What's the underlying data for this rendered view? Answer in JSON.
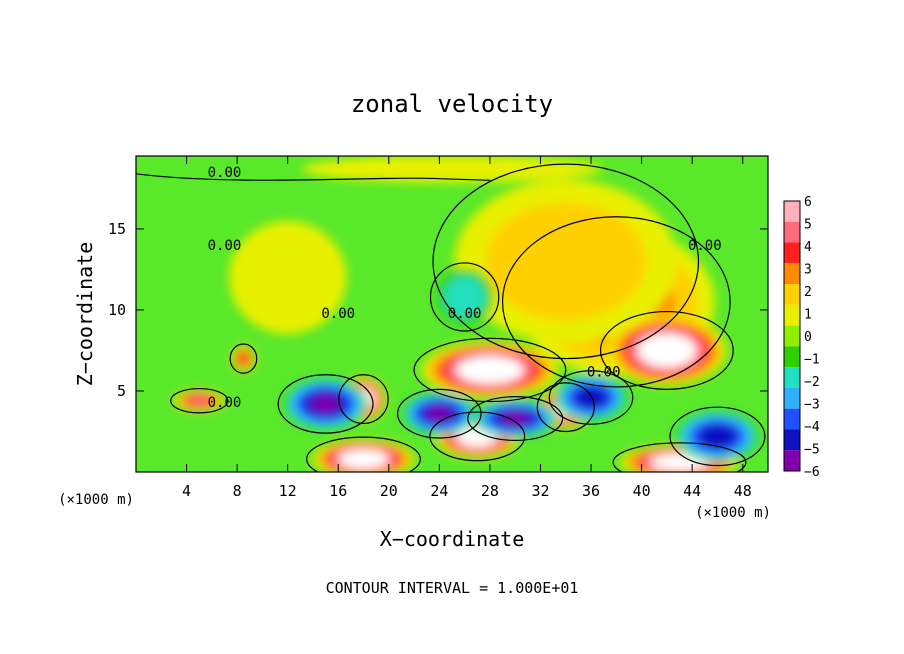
{
  "chart_data": {
    "type": "heatmap",
    "title": "zonal velocity",
    "xlabel": "X−coordinate",
    "ylabel": "Z−coordinate",
    "x_unit": "(×1000 m)",
    "y_unit": "(×1000 m)",
    "xlim": [
      0,
      50
    ],
    "ylim": [
      0,
      19.5
    ],
    "x_ticks": [
      4,
      8,
      12,
      16,
      20,
      24,
      28,
      32,
      36,
      40,
      44,
      48
    ],
    "y_ticks": [
      5,
      10,
      15
    ],
    "footer": "CONTOUR INTERVAL = 1.000E+01",
    "contour_label": "0.00",
    "contour_label_points": [
      [
        7,
        18.2
      ],
      [
        7,
        13.7
      ],
      [
        16,
        9.5
      ],
      [
        26,
        9.5
      ],
      [
        37,
        5.9
      ],
      [
        45,
        13.7
      ],
      [
        7,
        4.0
      ]
    ],
    "colorbar": {
      "ticks": [
        "6",
        "5",
        "4",
        "3",
        "2",
        "1",
        "0",
        "−1",
        "−2",
        "−3",
        "−4",
        "−5",
        "−6"
      ],
      "colors": [
        "#ffb0b8",
        "#ff6a7a",
        "#ff2020",
        "#ff8c00",
        "#ffd000",
        "#e8f000",
        "#90f000",
        "#30d000",
        "#20e0c0",
        "#30b0ff",
        "#2050ff",
        "#1010c0",
        "#8000b0"
      ]
    },
    "features": [
      {
        "x": 38,
        "z": 10.5,
        "value": 3.0,
        "sx": 6,
        "sz": 3.5
      },
      {
        "x": 34,
        "z": 13,
        "value": 2.0,
        "sx": 7,
        "sz": 4
      },
      {
        "x": 42,
        "z": 7.5,
        "value": 6.5,
        "sx": 3.5,
        "sz": 1.6
      },
      {
        "x": 28,
        "z": 6.3,
        "value": 6.5,
        "sx": 4,
        "sz": 1.3
      },
      {
        "x": 18,
        "z": 4.5,
        "value": 6.5,
        "sx": 1.3,
        "sz": 1.0
      },
      {
        "x": 34,
        "z": 4.0,
        "value": 6.5,
        "sx": 1.5,
        "sz": 1.0
      },
      {
        "x": 27,
        "z": 2.2,
        "value": 6.5,
        "sx": 2.5,
        "sz": 1.0
      },
      {
        "x": 18,
        "z": 0.8,
        "value": 6.5,
        "sx": 3,
        "sz": 0.9
      },
      {
        "x": 43,
        "z": 0.6,
        "value": 6.5,
        "sx": 3.5,
        "sz": 0.8
      },
      {
        "x": 15,
        "z": 4.2,
        "value": -5.5,
        "sx": 2.5,
        "sz": 1.2
      },
      {
        "x": 24,
        "z": 3.6,
        "value": -5.5,
        "sx": 2.2,
        "sz": 1.0
      },
      {
        "x": 30,
        "z": 3.3,
        "value": -5.5,
        "sx": 2.5,
        "sz": 0.9
      },
      {
        "x": 36,
        "z": 4.6,
        "value": -5.0,
        "sx": 2.2,
        "sz": 1.1
      },
      {
        "x": 46,
        "z": 2.2,
        "value": -5.0,
        "sx": 2.5,
        "sz": 1.2
      },
      {
        "x": 5,
        "z": 4.4,
        "value": 4.5,
        "sx": 1.5,
        "sz": 0.5
      },
      {
        "x": 8.5,
        "z": 7.0,
        "value": 4.0,
        "sx": 0.7,
        "sz": 0.6
      },
      {
        "x": 26,
        "z": 10.8,
        "value": -2.0,
        "sx": 1.8,
        "sz": 1.4
      },
      {
        "x": 12,
        "z": 12,
        "value": 1.0,
        "sx": 4,
        "sz": 3
      },
      {
        "x": 25,
        "z": 18.7,
        "value": 1.2,
        "sx": 10,
        "sz": 0.7
      }
    ]
  }
}
